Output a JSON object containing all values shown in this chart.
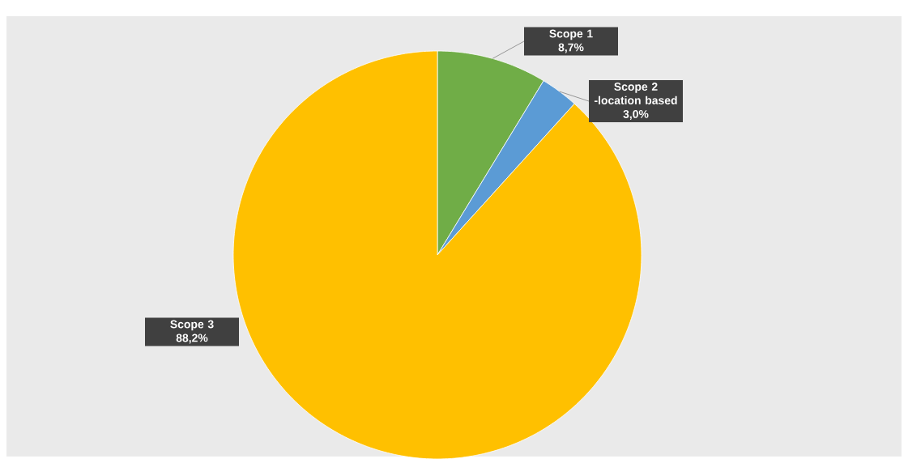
{
  "chart_data": {
    "type": "pie",
    "categories": [
      "Scope 1",
      "Scope 2 -location based",
      "Scope 3"
    ],
    "values": [
      8.7,
      3.0,
      88.2
    ],
    "value_labels": [
      "8,7%",
      "3,0%",
      "88,2%"
    ],
    "colors": [
      "#70ad47",
      "#5b9bd5",
      "#ffc000"
    ]
  }
}
